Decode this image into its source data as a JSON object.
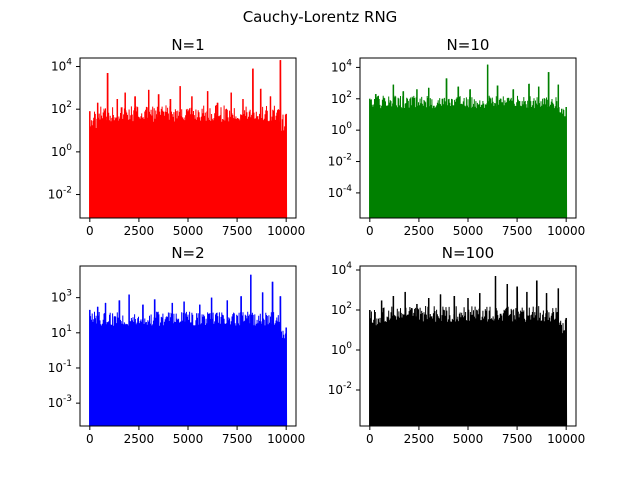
{
  "figure": {
    "suptitle": "Cauchy-Lorentz RNG"
  },
  "chart_data": [
    {
      "type": "line",
      "title": "N=1",
      "color": "#ff0000",
      "yscale": "log",
      "xlim": [
        -500,
        10500
      ],
      "ylim_exp": [
        -3.1,
        4.4
      ],
      "xticks": [
        "0",
        "2500",
        "5000",
        "7500",
        "10000"
      ],
      "xtick_values": [
        0,
        2500,
        5000,
        7500,
        10000
      ],
      "yticks": [
        "10-2",
        "100",
        "102",
        "104"
      ],
      "ytick_exps": [
        -2,
        0,
        2,
        4
      ],
      "series": [
        {
          "x": [
            0,
            400,
            900,
            1400,
            1800,
            2300,
            3000,
            3500,
            4100,
            4600,
            5200,
            6000,
            6500,
            7200,
            7800,
            8300,
            8700,
            9200,
            9700,
            10000
          ],
          "y": [
            80,
            200,
            5000,
            300,
            600,
            400,
            800,
            500,
            300,
            1200,
            400,
            700,
            200,
            600,
            300,
            8000,
            900,
            400,
            20000,
            60
          ]
        }
      ]
    },
    {
      "type": "line",
      "title": "N=10",
      "color": "#008000",
      "yscale": "log",
      "xlim": [
        -500,
        10500
      ],
      "ylim_exp": [
        -5.6,
        4.6
      ],
      "xticks": [
        "0",
        "2500",
        "5000",
        "7500",
        "10000"
      ],
      "xtick_values": [
        0,
        2500,
        5000,
        7500,
        10000
      ],
      "yticks": [
        "10-4",
        "10-2",
        "100",
        "102",
        "104"
      ],
      "ytick_exps": [
        -4,
        -2,
        0,
        2,
        4
      ],
      "series": [
        {
          "x": [
            0,
            300,
            1200,
            1700,
            2400,
            3000,
            3900,
            4500,
            5100,
            6000,
            6500,
            7300,
            8100,
            8600,
            9100,
            9600,
            10000
          ],
          "y": [
            100,
            200,
            800,
            300,
            400,
            500,
            2000,
            600,
            400,
            15000,
            700,
            400,
            900,
            600,
            5000,
            800,
            30
          ]
        }
      ]
    },
    {
      "type": "line",
      "title": "N=2",
      "color": "#0000ff",
      "yscale": "log",
      "xlim": [
        -500,
        10500
      ],
      "ylim_exp": [
        -4.3,
        4.8
      ],
      "xticks": [
        "0",
        "2500",
        "5000",
        "7500",
        "10000"
      ],
      "xtick_values": [
        0,
        2500,
        5000,
        7500,
        10000
      ],
      "yticks": [
        "10-3",
        "10-1",
        "101",
        "103"
      ],
      "ytick_exps": [
        -3,
        -1,
        1,
        3
      ],
      "series": [
        {
          "x": [
            0,
            400,
            800,
            1500,
            2000,
            2700,
            3300,
            4200,
            4800,
            5600,
            6200,
            7000,
            7700,
            8200,
            8800,
            9300,
            9700,
            10000
          ],
          "y": [
            200,
            300,
            500,
            700,
            1500,
            400,
            800,
            500,
            600,
            400,
            1000,
            700,
            1200,
            20000,
            2000,
            8000,
            1200,
            20
          ]
        }
      ]
    },
    {
      "type": "line",
      "title": "N=100",
      "color": "#000000",
      "yscale": "log",
      "xlim": [
        -500,
        10500
      ],
      "ylim_exp": [
        -3.8,
        4.2
      ],
      "xticks": [
        "0",
        "2500",
        "5000",
        "7500",
        "10000"
      ],
      "xtick_values": [
        0,
        2500,
        5000,
        7500,
        10000
      ],
      "yticks": [
        "10-2",
        "100",
        "102",
        "104"
      ],
      "ytick_exps": [
        -2,
        0,
        2,
        4
      ],
      "series": [
        {
          "x": [
            0,
            600,
            1200,
            1800,
            2400,
            3000,
            3600,
            4300,
            5000,
            5600,
            6400,
            7000,
            7500,
            8000,
            8500,
            9000,
            9600,
            10000
          ],
          "y": [
            100,
            300,
            500,
            800,
            200,
            400,
            600,
            500,
            400,
            700,
            5000,
            2000,
            1500,
            800,
            3000,
            700,
            1200,
            40
          ]
        }
      ]
    }
  ]
}
